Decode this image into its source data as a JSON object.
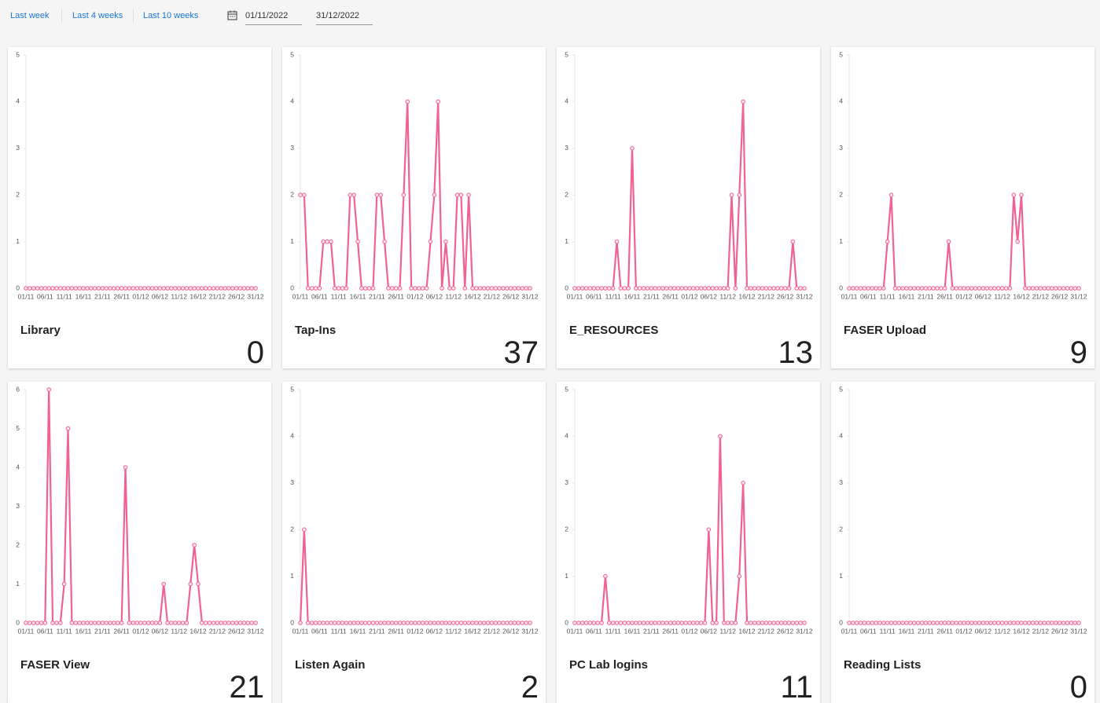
{
  "toolbar": {
    "ranges": [
      "Last week",
      "Last 4 weeks",
      "Last 10 weeks"
    ],
    "start_date": "01/11/2022",
    "end_date": "31/12/2022"
  },
  "chart_data": [
    {
      "type": "line",
      "title": "Library",
      "total": 0,
      "color": "#f06292",
      "ylim": [
        0,
        5
      ],
      "yticks": [
        0,
        1,
        2,
        3,
        4,
        5
      ],
      "categories": [
        "01/11",
        null,
        null,
        null,
        null,
        "06/11",
        null,
        null,
        null,
        null,
        "11/11",
        null,
        null,
        null,
        null,
        "16/11",
        null,
        null,
        null,
        null,
        "21/11",
        null,
        null,
        null,
        null,
        "26/11",
        null,
        null,
        null,
        null,
        "01/12",
        null,
        null,
        null,
        null,
        "06/12",
        null,
        null,
        null,
        null,
        "11/12",
        null,
        null,
        null,
        null,
        "16/12",
        null,
        null,
        null,
        null,
        "21/12",
        null,
        null,
        null,
        null,
        "26/12",
        null,
        null,
        null,
        null,
        "31/12"
      ],
      "values": [
        0,
        0,
        0,
        0,
        0,
        0,
        0,
        0,
        0,
        0,
        0,
        0,
        0,
        0,
        0,
        0,
        0,
        0,
        0,
        0,
        0,
        0,
        0,
        0,
        0,
        0,
        0,
        0,
        0,
        0,
        0,
        0,
        0,
        0,
        0,
        0,
        0,
        0,
        0,
        0,
        0,
        0,
        0,
        0,
        0,
        0,
        0,
        0,
        0,
        0,
        0,
        0,
        0,
        0,
        0,
        0,
        0,
        0,
        0,
        0,
        0
      ]
    },
    {
      "type": "line",
      "title": "Tap-Ins",
      "total": 37,
      "color": "#f06292",
      "ylim": [
        0,
        5
      ],
      "yticks": [
        0,
        1,
        2,
        3,
        4,
        5
      ],
      "categories": [
        "01/11",
        null,
        null,
        null,
        null,
        "06/11",
        null,
        null,
        null,
        null,
        "11/11",
        null,
        null,
        null,
        null,
        "16/11",
        null,
        null,
        null,
        null,
        "21/11",
        null,
        null,
        null,
        null,
        "26/11",
        null,
        null,
        null,
        null,
        "01/12",
        null,
        null,
        null,
        null,
        "06/12",
        null,
        null,
        null,
        null,
        "11/12",
        null,
        null,
        null,
        null,
        "16/12",
        null,
        null,
        null,
        null,
        "21/12",
        null,
        null,
        null,
        null,
        "26/12",
        null,
        null,
        null,
        null,
        "31/12"
      ],
      "values": [
        2,
        2,
        0,
        0,
        0,
        0,
        1,
        1,
        1,
        0,
        0,
        0,
        0,
        2,
        2,
        1,
        0,
        0,
        0,
        0,
        2,
        2,
        1,
        0,
        0,
        0,
        0,
        2,
        4,
        0,
        0,
        0,
        0,
        0,
        1,
        2,
        4,
        0,
        1,
        0,
        0,
        2,
        2,
        0,
        2,
        0,
        0,
        0,
        0,
        0,
        0,
        0,
        0,
        0,
        0,
        0,
        0,
        0,
        0,
        0,
        0
      ]
    },
    {
      "type": "line",
      "title": "E_RESOURCES",
      "total": 13,
      "color": "#f06292",
      "ylim": [
        0,
        5
      ],
      "yticks": [
        0,
        1,
        2,
        3,
        4,
        5
      ],
      "categories": [
        "01/11",
        null,
        null,
        null,
        null,
        "06/11",
        null,
        null,
        null,
        null,
        "11/11",
        null,
        null,
        null,
        null,
        "16/11",
        null,
        null,
        null,
        null,
        "21/11",
        null,
        null,
        null,
        null,
        "26/11",
        null,
        null,
        null,
        null,
        "01/12",
        null,
        null,
        null,
        null,
        "06/12",
        null,
        null,
        null,
        null,
        "11/12",
        null,
        null,
        null,
        null,
        "16/12",
        null,
        null,
        null,
        null,
        "21/12",
        null,
        null,
        null,
        null,
        "26/12",
        null,
        null,
        null,
        null,
        "31/12"
      ],
      "values": [
        0,
        0,
        0,
        0,
        0,
        0,
        0,
        0,
        0,
        0,
        0,
        1,
        0,
        0,
        0,
        3,
        0,
        0,
        0,
        0,
        0,
        0,
        0,
        0,
        0,
        0,
        0,
        0,
        0,
        0,
        0,
        0,
        0,
        0,
        0,
        0,
        0,
        0,
        0,
        0,
        0,
        2,
        0,
        2,
        4,
        0,
        0,
        0,
        0,
        0,
        0,
        0,
        0,
        0,
        0,
        0,
        0,
        1,
        0,
        0,
        0
      ]
    },
    {
      "type": "line",
      "title": "FASER Upload",
      "total": 9,
      "color": "#f06292",
      "ylim": [
        0,
        5
      ],
      "yticks": [
        0,
        1,
        2,
        3,
        4,
        5
      ],
      "categories": [
        "01/11",
        null,
        null,
        null,
        null,
        "06/11",
        null,
        null,
        null,
        null,
        "11/11",
        null,
        null,
        null,
        null,
        "16/11",
        null,
        null,
        null,
        null,
        "21/11",
        null,
        null,
        null,
        null,
        "26/11",
        null,
        null,
        null,
        null,
        "01/12",
        null,
        null,
        null,
        null,
        "06/12",
        null,
        null,
        null,
        null,
        "11/12",
        null,
        null,
        null,
        null,
        "16/12",
        null,
        null,
        null,
        null,
        "21/12",
        null,
        null,
        null,
        null,
        "26/12",
        null,
        null,
        null,
        null,
        "31/12"
      ],
      "values": [
        0,
        0,
        0,
        0,
        0,
        0,
        0,
        0,
        0,
        0,
        1,
        2,
        0,
        0,
        0,
        0,
        0,
        0,
        0,
        0,
        0,
        0,
        0,
        0,
        0,
        0,
        1,
        0,
        0,
        0,
        0,
        0,
        0,
        0,
        0,
        0,
        0,
        0,
        0,
        0,
        0,
        0,
        0,
        2,
        1,
        2,
        0,
        0,
        0,
        0,
        0,
        0,
        0,
        0,
        0,
        0,
        0,
        0,
        0,
        0,
        0
      ]
    },
    {
      "type": "line",
      "title": "FASER View",
      "total": 21,
      "color": "#f06292",
      "ylim": [
        0,
        6
      ],
      "yticks": [
        0,
        1,
        2,
        3,
        4,
        5,
        6
      ],
      "categories": [
        "01/11",
        null,
        null,
        null,
        null,
        "06/11",
        null,
        null,
        null,
        null,
        "11/11",
        null,
        null,
        null,
        null,
        "16/11",
        null,
        null,
        null,
        null,
        "21/11",
        null,
        null,
        null,
        null,
        "26/11",
        null,
        null,
        null,
        null,
        "01/12",
        null,
        null,
        null,
        null,
        "06/12",
        null,
        null,
        null,
        null,
        "11/12",
        null,
        null,
        null,
        null,
        "16/12",
        null,
        null,
        null,
        null,
        "21/12",
        null,
        null,
        null,
        null,
        "26/12",
        null,
        null,
        null,
        null,
        "31/12"
      ],
      "values": [
        0,
        0,
        0,
        0,
        0,
        0,
        6,
        0,
        0,
        0,
        1,
        5,
        0,
        0,
        0,
        0,
        0,
        0,
        0,
        0,
        0,
        0,
        0,
        0,
        0,
        0,
        4,
        0,
        0,
        0,
        0,
        0,
        0,
        0,
        0,
        0,
        1,
        0,
        0,
        0,
        0,
        0,
        0,
        1,
        2,
        1,
        0,
        0,
        0,
        0,
        0,
        0,
        0,
        0,
        0,
        0,
        0,
        0,
        0,
        0,
        0
      ]
    },
    {
      "type": "line",
      "title": "Listen Again",
      "total": 2,
      "color": "#f06292",
      "ylim": [
        0,
        5
      ],
      "yticks": [
        0,
        1,
        2,
        3,
        4,
        5
      ],
      "categories": [
        "01/11",
        null,
        null,
        null,
        null,
        "06/11",
        null,
        null,
        null,
        null,
        "11/11",
        null,
        null,
        null,
        null,
        "16/11",
        null,
        null,
        null,
        null,
        "21/11",
        null,
        null,
        null,
        null,
        "26/11",
        null,
        null,
        null,
        null,
        "01/12",
        null,
        null,
        null,
        null,
        "06/12",
        null,
        null,
        null,
        null,
        "11/12",
        null,
        null,
        null,
        null,
        "16/12",
        null,
        null,
        null,
        null,
        "21/12",
        null,
        null,
        null,
        null,
        "26/12",
        null,
        null,
        null,
        null,
        "31/12"
      ],
      "values": [
        0,
        2,
        0,
        0,
        0,
        0,
        0,
        0,
        0,
        0,
        0,
        0,
        0,
        0,
        0,
        0,
        0,
        0,
        0,
        0,
        0,
        0,
        0,
        0,
        0,
        0,
        0,
        0,
        0,
        0,
        0,
        0,
        0,
        0,
        0,
        0,
        0,
        0,
        0,
        0,
        0,
        0,
        0,
        0,
        0,
        0,
        0,
        0,
        0,
        0,
        0,
        0,
        0,
        0,
        0,
        0,
        0,
        0,
        0,
        0,
        0
      ]
    },
    {
      "type": "line",
      "title": "PC Lab logins",
      "total": 11,
      "color": "#f06292",
      "ylim": [
        0,
        5
      ],
      "yticks": [
        0,
        1,
        2,
        3,
        4,
        5
      ],
      "categories": [
        "01/11",
        null,
        null,
        null,
        null,
        "06/11",
        null,
        null,
        null,
        null,
        "11/11",
        null,
        null,
        null,
        null,
        "16/11",
        null,
        null,
        null,
        null,
        "21/11",
        null,
        null,
        null,
        null,
        "26/11",
        null,
        null,
        null,
        null,
        "01/12",
        null,
        null,
        null,
        null,
        "06/12",
        null,
        null,
        null,
        null,
        "11/12",
        null,
        null,
        null,
        null,
        "16/12",
        null,
        null,
        null,
        null,
        "21/12",
        null,
        null,
        null,
        null,
        "26/12",
        null,
        null,
        null,
        null,
        "31/12"
      ],
      "values": [
        0,
        0,
        0,
        0,
        0,
        0,
        0,
        0,
        1,
        0,
        0,
        0,
        0,
        0,
        0,
        0,
        0,
        0,
        0,
        0,
        0,
        0,
        0,
        0,
        0,
        0,
        0,
        0,
        0,
        0,
        0,
        0,
        0,
        0,
        0,
        2,
        0,
        0,
        4,
        0,
        0,
        0,
        0,
        1,
        3,
        0,
        0,
        0,
        0,
        0,
        0,
        0,
        0,
        0,
        0,
        0,
        0,
        0,
        0,
        0,
        0
      ]
    },
    {
      "type": "line",
      "title": "Reading Lists",
      "total": 0,
      "color": "#f06292",
      "ylim": [
        0,
        5
      ],
      "yticks": [
        0,
        1,
        2,
        3,
        4,
        5
      ],
      "categories": [
        "01/11",
        null,
        null,
        null,
        null,
        "06/11",
        null,
        null,
        null,
        null,
        "11/11",
        null,
        null,
        null,
        null,
        "16/11",
        null,
        null,
        null,
        null,
        "21/11",
        null,
        null,
        null,
        null,
        "26/11",
        null,
        null,
        null,
        null,
        "01/12",
        null,
        null,
        null,
        null,
        "06/12",
        null,
        null,
        null,
        null,
        "11/12",
        null,
        null,
        null,
        null,
        "16/12",
        null,
        null,
        null,
        null,
        "21/12",
        null,
        null,
        null,
        null,
        "26/12",
        null,
        null,
        null,
        null,
        "31/12"
      ],
      "values": [
        0,
        0,
        0,
        0,
        0,
        0,
        0,
        0,
        0,
        0,
        0,
        0,
        0,
        0,
        0,
        0,
        0,
        0,
        0,
        0,
        0,
        0,
        0,
        0,
        0,
        0,
        0,
        0,
        0,
        0,
        0,
        0,
        0,
        0,
        0,
        0,
        0,
        0,
        0,
        0,
        0,
        0,
        0,
        0,
        0,
        0,
        0,
        0,
        0,
        0,
        0,
        0,
        0,
        0,
        0,
        0,
        0,
        0,
        0,
        0,
        0
      ]
    }
  ]
}
